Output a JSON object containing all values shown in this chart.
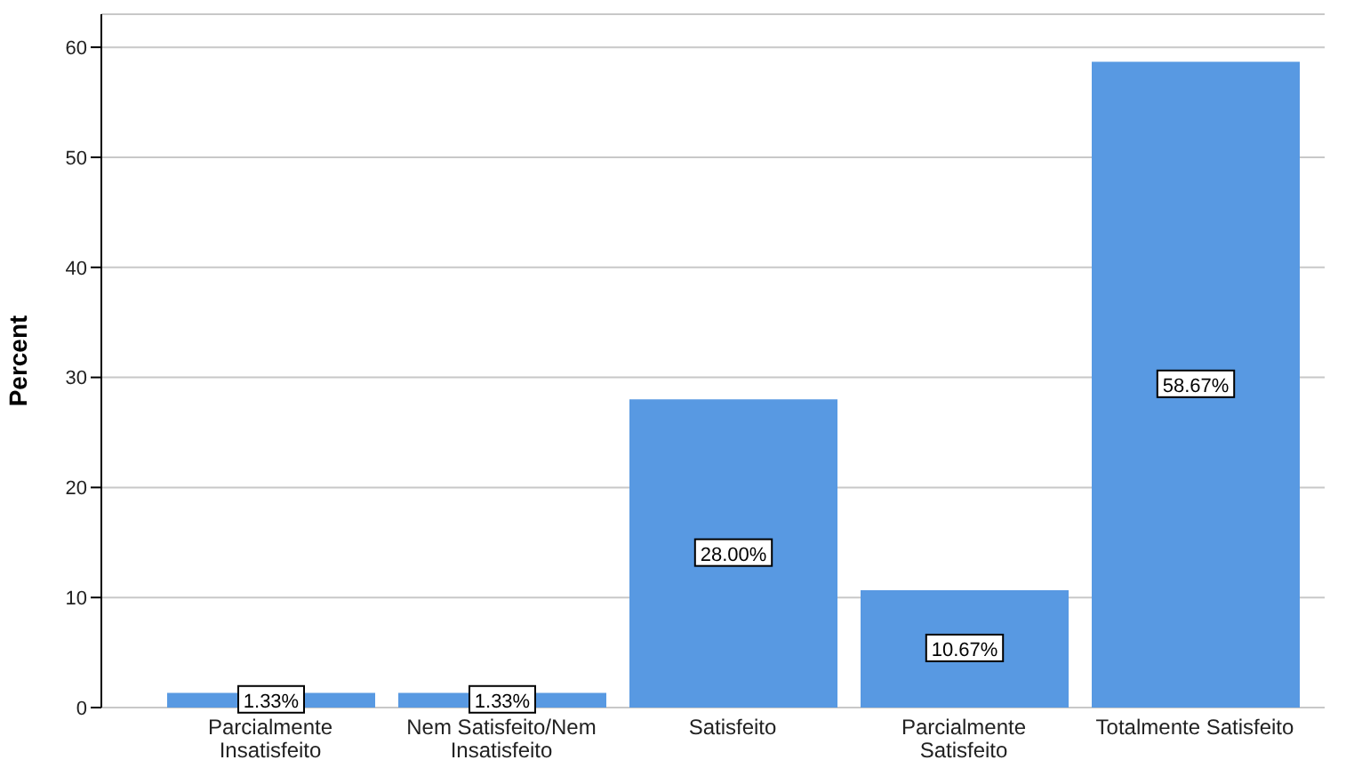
{
  "chart_data": {
    "type": "bar",
    "ylabel": "Percent",
    "categories": [
      "Parcialmente Insatisfeito",
      "Nem Satisfeito/Nem Insatisfeito",
      "Satisfeito",
      "Parcialmente Satisfeito",
      "Totalmente Satisfeito"
    ],
    "values": [
      1.33,
      1.33,
      28.0,
      10.67,
      58.67
    ],
    "value_labels": [
      "1.33%",
      "1.33%",
      "28.00%",
      "10.67%",
      "58.67%"
    ],
    "color": "#5899e2",
    "ylim": [
      0,
      63
    ],
    "yticks": [
      0,
      10,
      20,
      30,
      40,
      50,
      60
    ],
    "grid": "y"
  }
}
